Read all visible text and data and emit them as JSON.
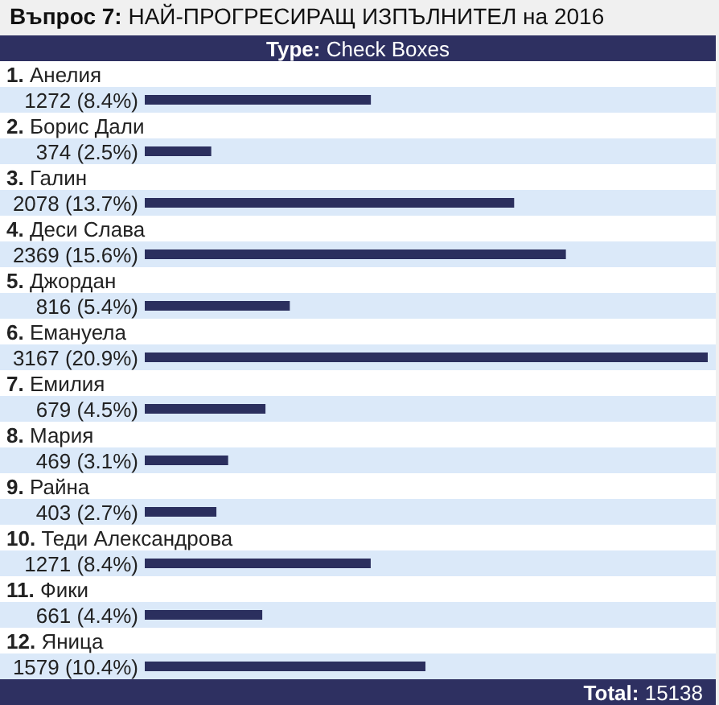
{
  "chart_data": {
    "type": "bar",
    "orientation": "horizontal",
    "title": "Въпрос 7: НАЙ-ПРОГРЕСИРАЩ ИЗПЪЛНИТЕЛ на 2016",
    "categories": [
      "1. Анелия",
      "2. Борис Дали",
      "3. Галин",
      "4. Деси Слава",
      "5. Джордан",
      "6. Емануела",
      "7. Емилия",
      "8. Мария",
      "9. Райна",
      "10. Теди Александрова",
      "11. Фики",
      "12. Яница"
    ],
    "values": [
      1272,
      374,
      2078,
      2369,
      816,
      3167,
      679,
      469,
      403,
      1271,
      661,
      1579
    ],
    "value_labels": [
      "1272 (8.4%)",
      "374 (2.5%)",
      "2078 (13.7%)",
      "2369 (15.6%)",
      "816 (5.4%)",
      "3167 (20.9%)",
      "679 (4.5%)",
      "469 (3.1%)",
      "403 (2.7%)",
      "1271 (8.4%)",
      "661 (4.4%)",
      "1579 (10.4%)"
    ],
    "color": "#2b2f5e",
    "annotations": [
      "Type: Check Boxes",
      "Total: 15138"
    ]
  }
}
